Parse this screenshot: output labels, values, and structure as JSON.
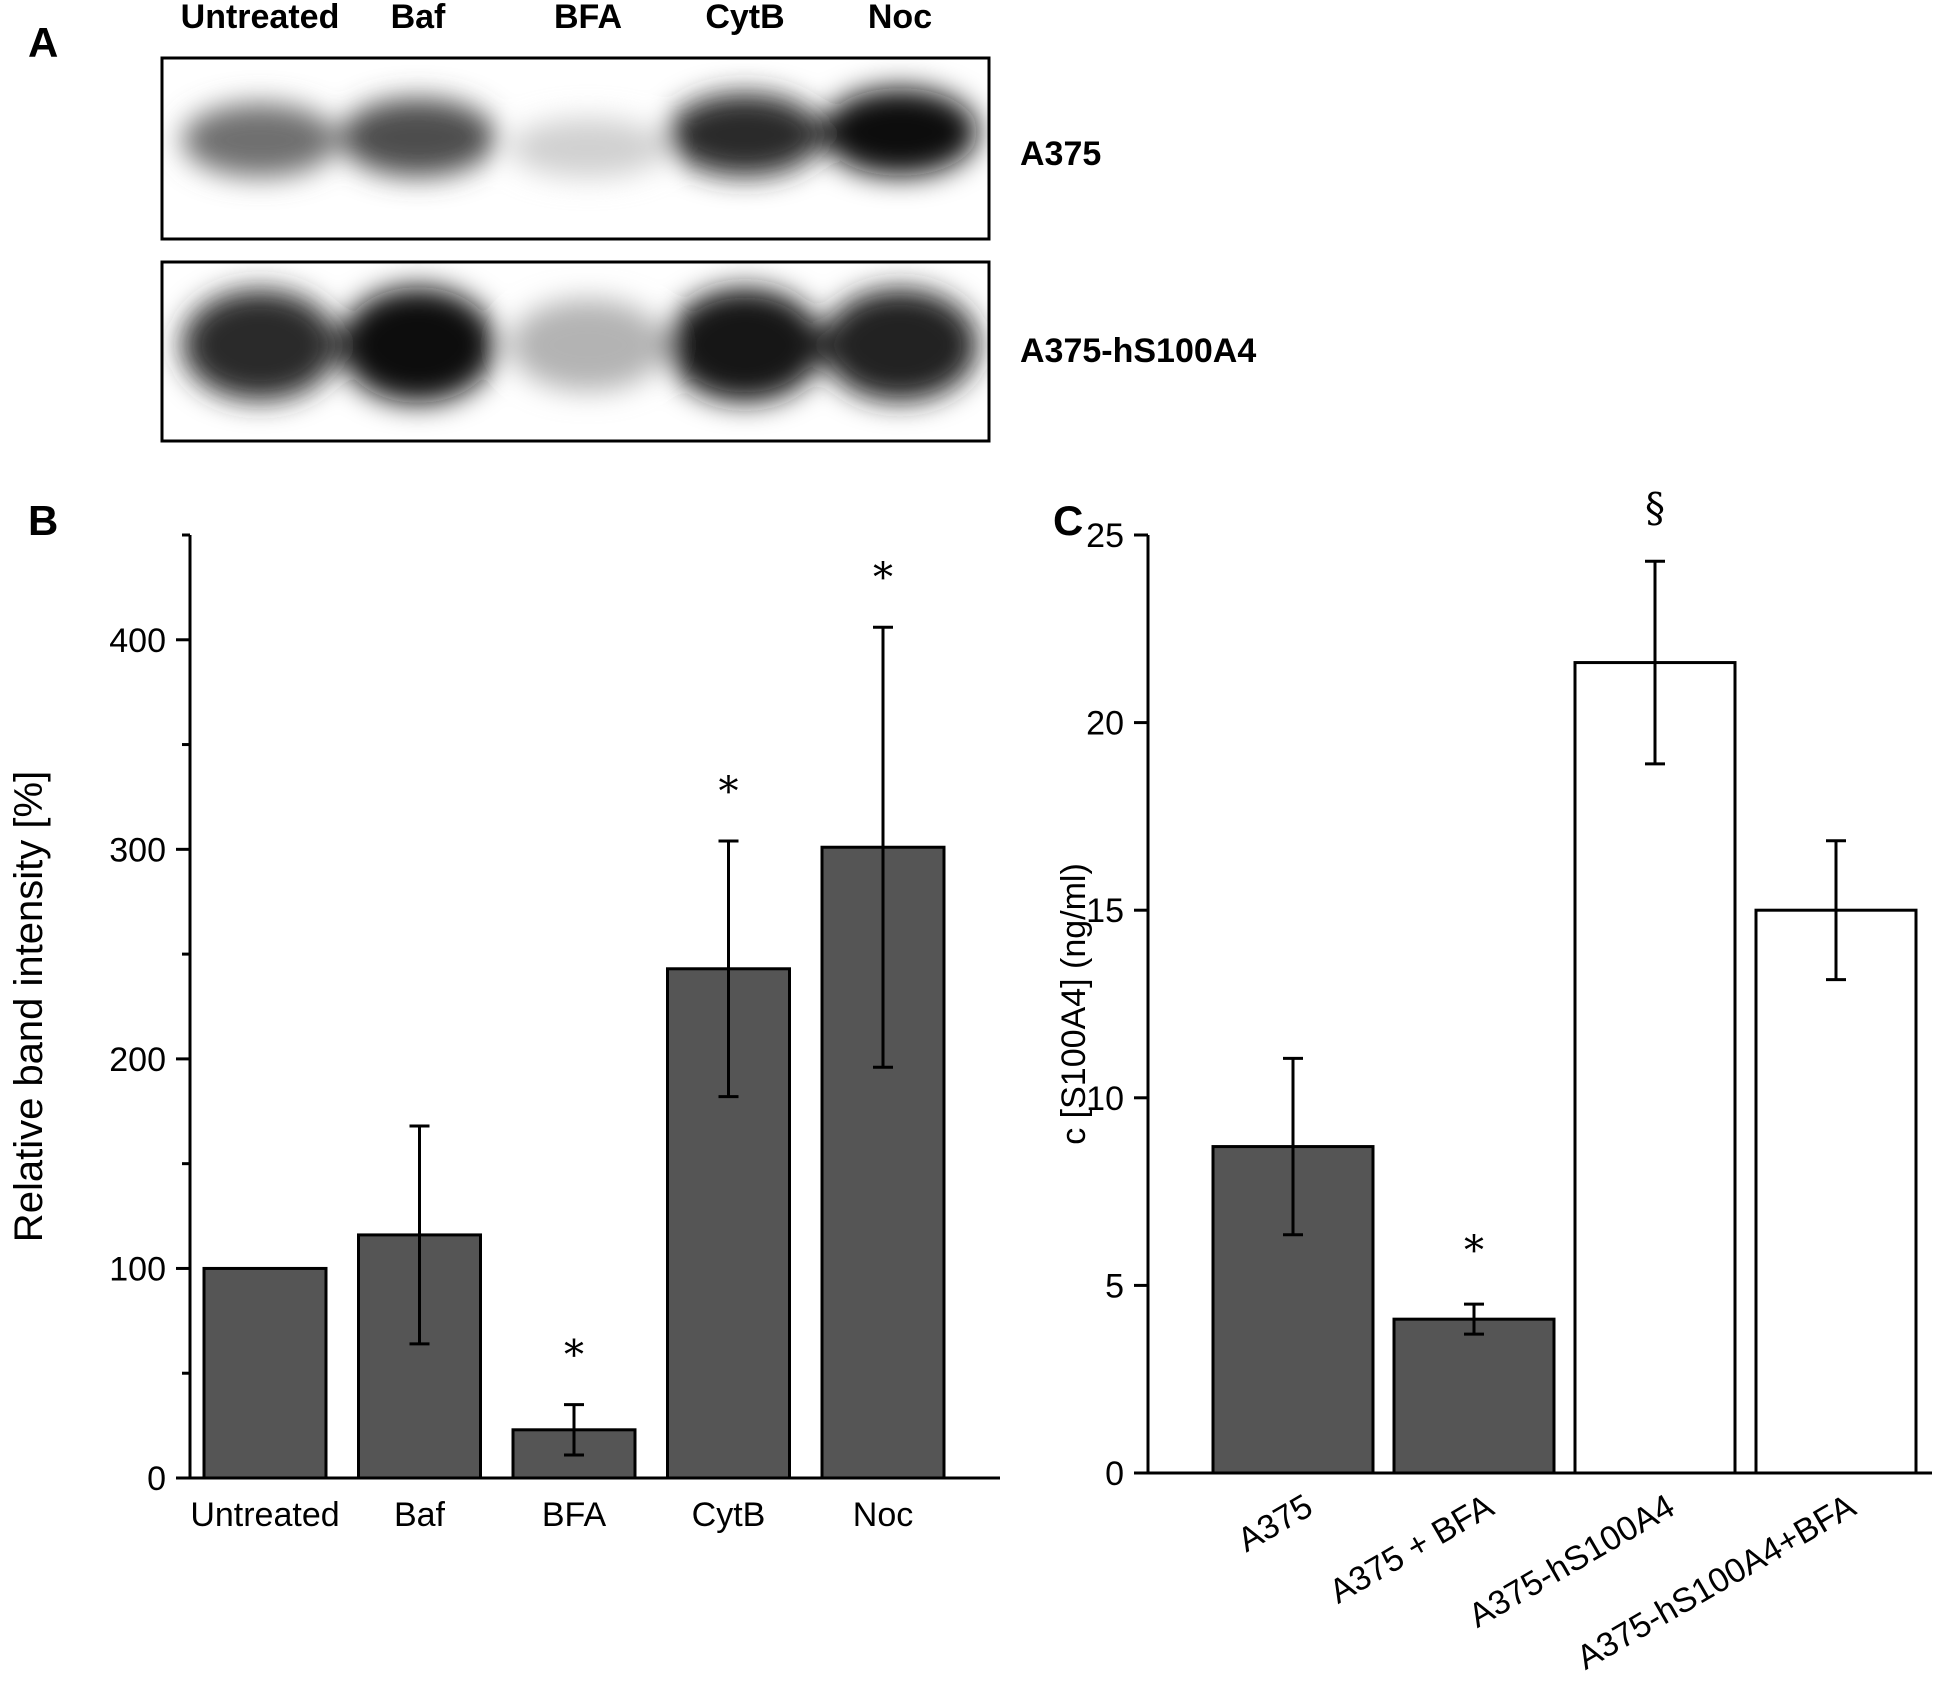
{
  "panel_a": {
    "letter": "A",
    "lanes": [
      "Untreated",
      "Baf",
      "BFA",
      "CytB",
      "Noc"
    ],
    "rows": [
      "A375",
      "A375-hS100A4"
    ],
    "band_intensity_relative": [
      [
        0.55,
        0.7,
        0.12,
        0.85,
        1.0
      ],
      [
        0.85,
        1.0,
        0.25,
        0.95,
        0.9
      ]
    ]
  },
  "chart_data": [
    {
      "panel": "B",
      "type": "bar",
      "categories": [
        "Untreated",
        "Baf",
        "BFA",
        "CytB",
        "Noc"
      ],
      "values": [
        100,
        116,
        23,
        243,
        301
      ],
      "error": [
        0,
        52,
        12,
        61,
        105
      ],
      "significance": [
        "",
        "",
        "*",
        "*",
        "*"
      ],
      "bar_colors": [
        "#555555",
        "#555555",
        "#555555",
        "#555555",
        "#555555"
      ],
      "title": "",
      "xlabel": "",
      "ylabel": "Relative band intensity [%]",
      "ylim": [
        0,
        450
      ],
      "yticks": [
        0,
        100,
        200,
        300,
        400
      ],
      "grid": false
    },
    {
      "panel": "C",
      "type": "bar",
      "categories": [
        "A375",
        "A375 + BFA",
        "A375-hS100A4",
        "A375-hS100A4+BFA"
      ],
      "values": [
        8.7,
        4.1,
        21.6,
        15.0
      ],
      "error": [
        2.35,
        0.4,
        2.7,
        1.85
      ],
      "significance": [
        "",
        "*",
        "§",
        ""
      ],
      "bar_colors": [
        "#555555",
        "#555555",
        "#ffffff",
        "#ffffff"
      ],
      "title": "",
      "xlabel": "",
      "ylabel": "c [S100A4] (ng/ml)",
      "ylim": [
        0,
        25
      ],
      "yticks": [
        0,
        5,
        10,
        15,
        20,
        25
      ],
      "grid": false
    }
  ],
  "colors": {
    "bar_dark": "#555555",
    "bar_light": "#ffffff",
    "ink": "#000000"
  }
}
